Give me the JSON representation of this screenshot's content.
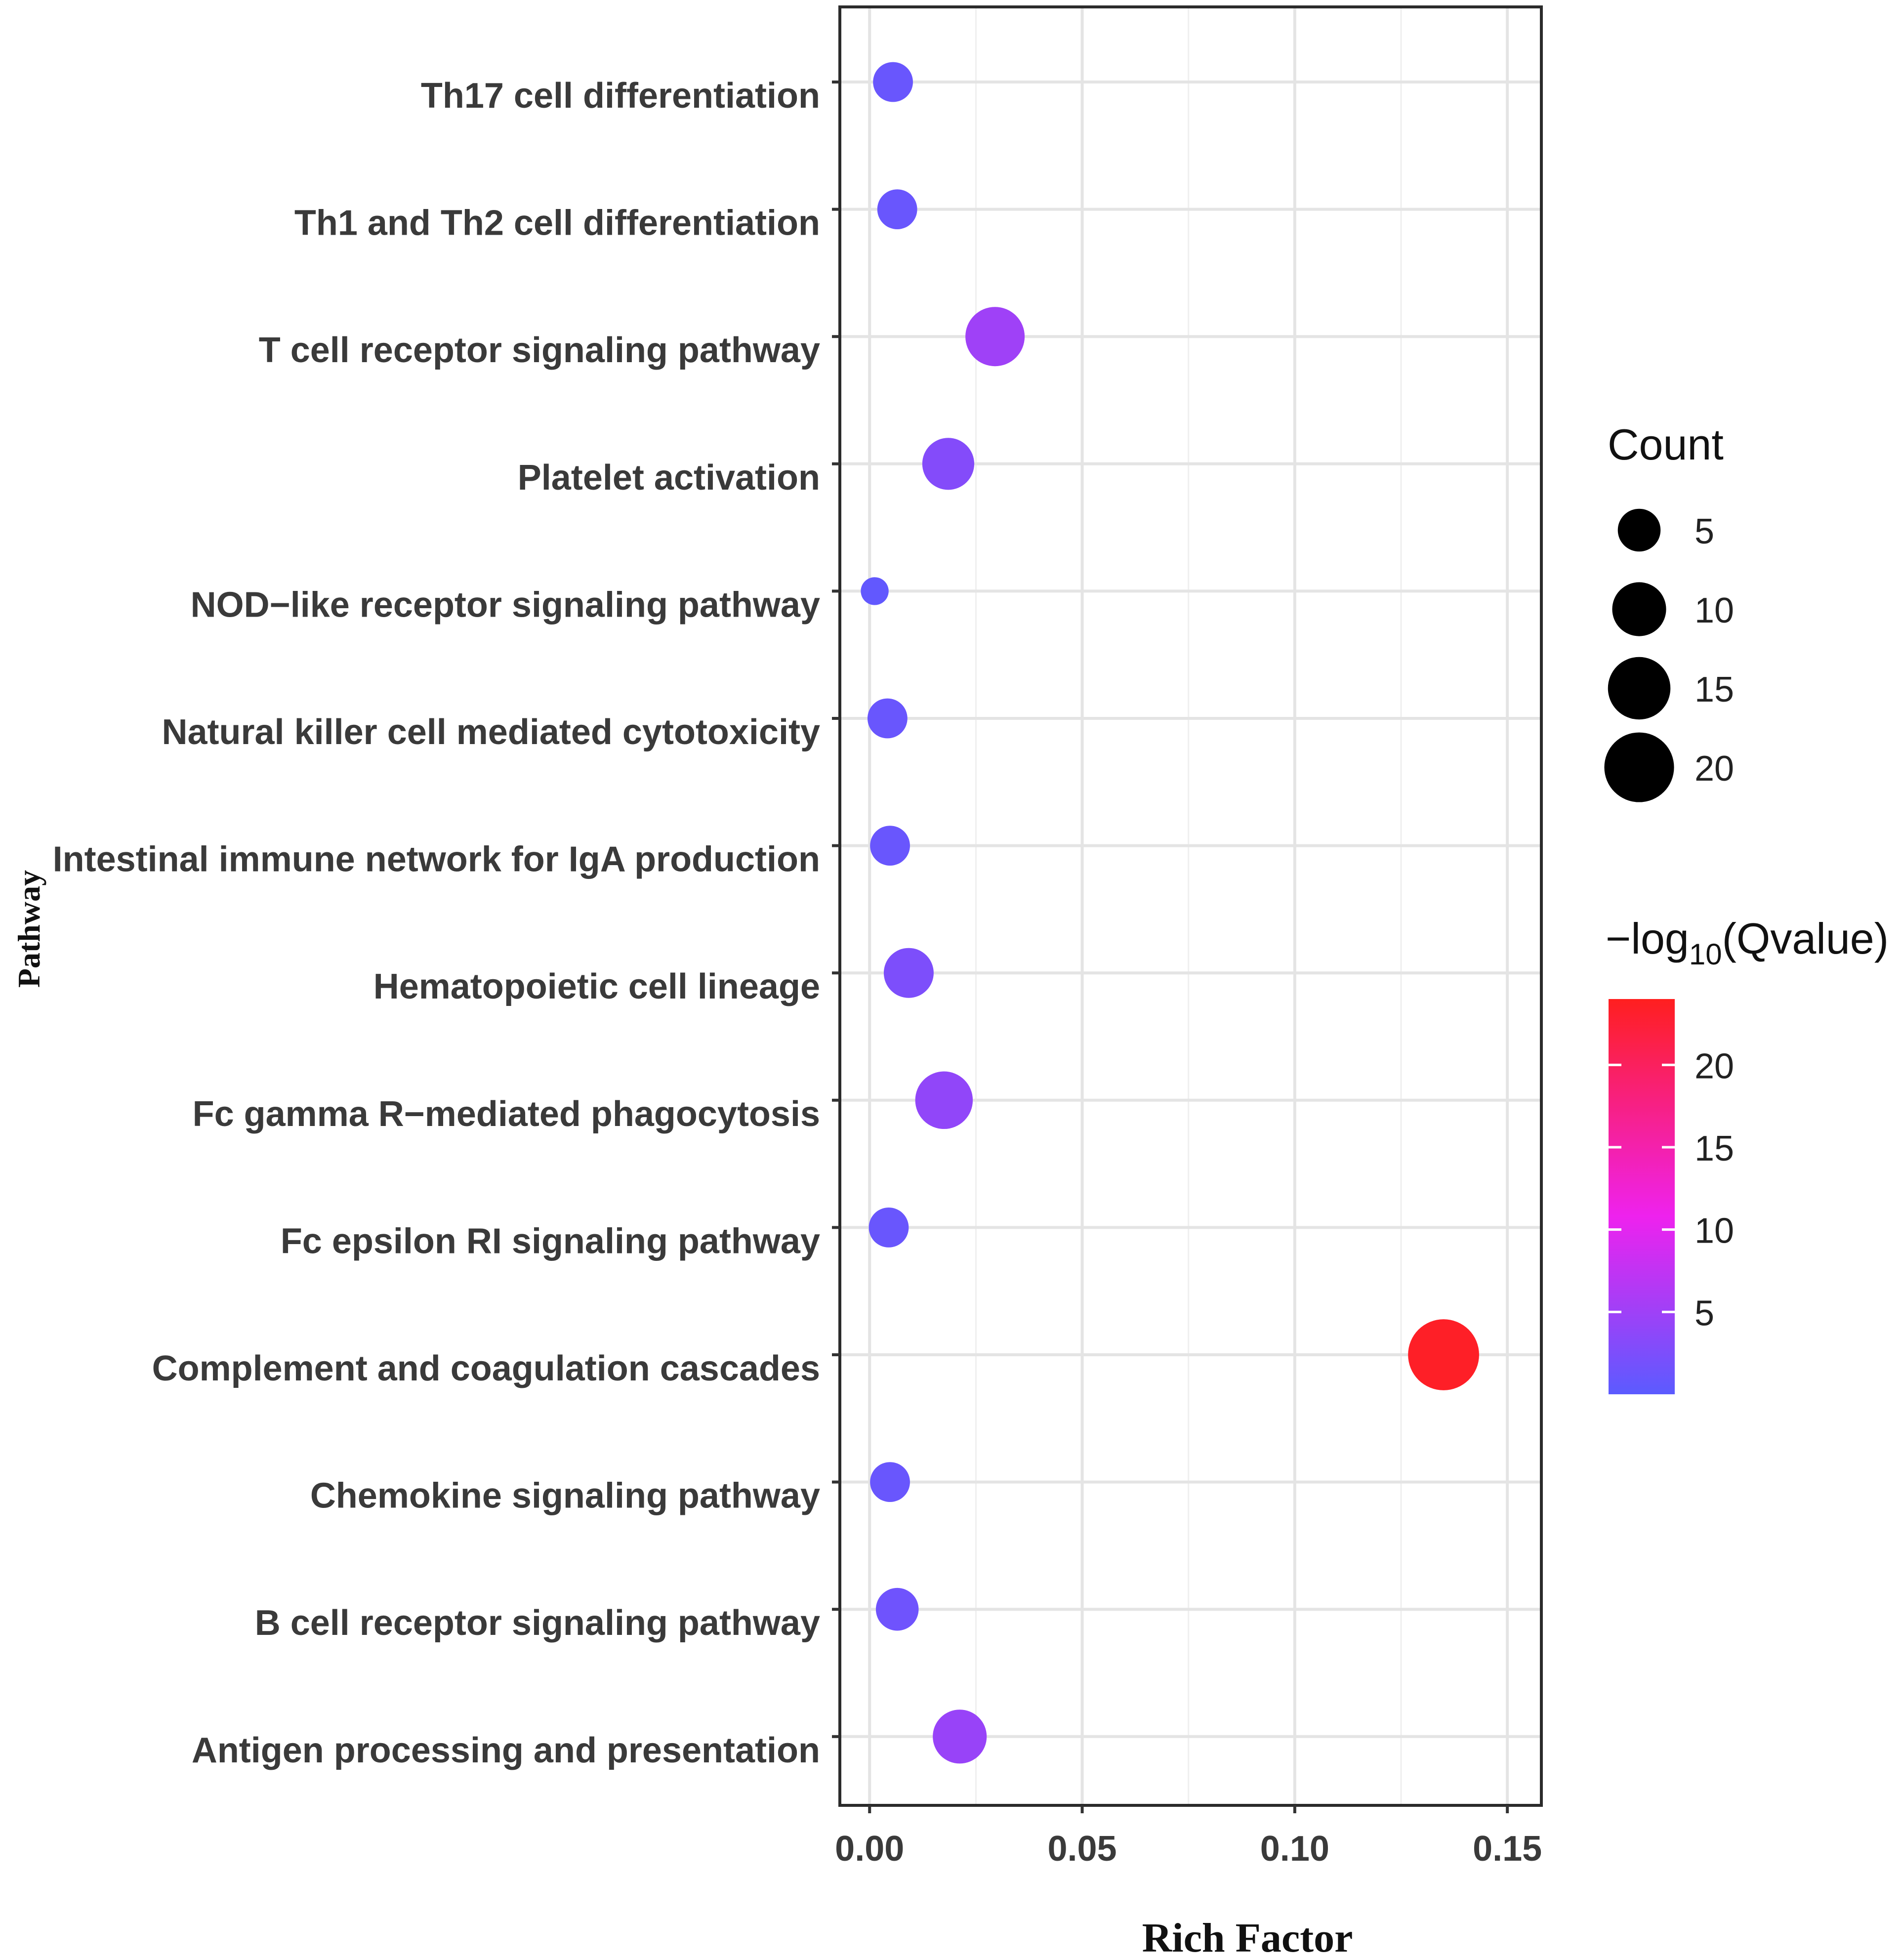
{
  "chart_data": {
    "type": "scatter",
    "subtype": "bubble",
    "title": "",
    "xlabel": "Rich Factor",
    "ylabel": "Pathway",
    "xlim": [
      -0.007,
      0.158
    ],
    "x_ticks": [
      0.0,
      0.05,
      0.1,
      0.15
    ],
    "x_tick_labels": [
      "0.00",
      "0.05",
      "0.10",
      "0.15"
    ],
    "grid": true,
    "categories": [
      "Th17 cell differentiation",
      "Th1 and Th2 cell differentiation",
      "T cell receptor signaling pathway",
      "Platelet activation",
      "NOD−like receptor signaling pathway",
      "Natural killer cell mediated cytotoxicity",
      "Intestinal immune network for IgA production",
      "Hematopoietic cell lineage",
      "Fc gamma R−mediated phagocytosis",
      "Fc epsilon RI signaling pathway",
      "Complement and coagulation cascades",
      "Chemokine signaling pathway",
      "B cell receptor signaling pathway",
      "Antigen processing and presentation"
    ],
    "points": [
      {
        "pathway": "Th17 cell differentiation",
        "rich_factor": 0.0055,
        "count": 4,
        "neg_log10_qvalue": 1.0
      },
      {
        "pathway": "Th1 and Th2 cell differentiation",
        "rich_factor": 0.0065,
        "count": 4,
        "neg_log10_qvalue": 1.0
      },
      {
        "pathway": "T cell receptor signaling pathway",
        "rich_factor": 0.0295,
        "count": 13,
        "neg_log10_qvalue": 5.0
      },
      {
        "pathway": "Platelet activation",
        "rich_factor": 0.0185,
        "count": 9,
        "neg_log10_qvalue": 3.0
      },
      {
        "pathway": "NOD−like receptor signaling pathway",
        "rich_factor": 0.0012,
        "count": 1,
        "neg_log10_qvalue": 0.5
      },
      {
        "pathway": "Natural killer cell mediated cytotoxicity",
        "rich_factor": 0.0042,
        "count": 4,
        "neg_log10_qvalue": 1.0
      },
      {
        "pathway": "Intestinal immune network for IgA production",
        "rich_factor": 0.0048,
        "count": 4,
        "neg_log10_qvalue": 1.0
      },
      {
        "pathway": "Hematopoietic cell lineage",
        "rich_factor": 0.0092,
        "count": 8,
        "neg_log10_qvalue": 2.5
      },
      {
        "pathway": "Fc gamma R−mediated phagocytosis",
        "rich_factor": 0.0175,
        "count": 12,
        "neg_log10_qvalue": 4.0
      },
      {
        "pathway": "Fc epsilon RI signaling pathway",
        "rich_factor": 0.0045,
        "count": 4,
        "neg_log10_qvalue": 1.0
      },
      {
        "pathway": "Complement and coagulation cascades",
        "rich_factor": 0.135,
        "count": 21,
        "neg_log10_qvalue": 23.5
      },
      {
        "pathway": "Chemokine signaling pathway",
        "rich_factor": 0.0048,
        "count": 4,
        "neg_log10_qvalue": 1.0
      },
      {
        "pathway": "B cell receptor signaling pathway",
        "rich_factor": 0.0065,
        "count": 5,
        "neg_log10_qvalue": 1.5
      },
      {
        "pathway": "Antigen processing and presentation",
        "rich_factor": 0.0212,
        "count": 10,
        "neg_log10_qvalue": 4.5
      }
    ],
    "size_legend": {
      "title": "Count",
      "values": [
        5,
        10,
        15,
        20
      ]
    },
    "color_legend": {
      "title_prefix": "−log",
      "title_subscript": "10",
      "title_suffix": "(Qvalue)",
      "min": 0,
      "max": 24,
      "ticks": [
        5,
        10,
        15,
        20
      ],
      "tick_labels": [
        "5",
        "10",
        "15",
        "20"
      ],
      "low_color": "#5b5bff",
      "mid_color": "#ee22ee",
      "high_color": "#ff1f1f"
    },
    "colors": {
      "panel_border": "#2b2b2b",
      "grid": "#e4e4e4",
      "size_legend_fill": "#000000"
    }
  }
}
